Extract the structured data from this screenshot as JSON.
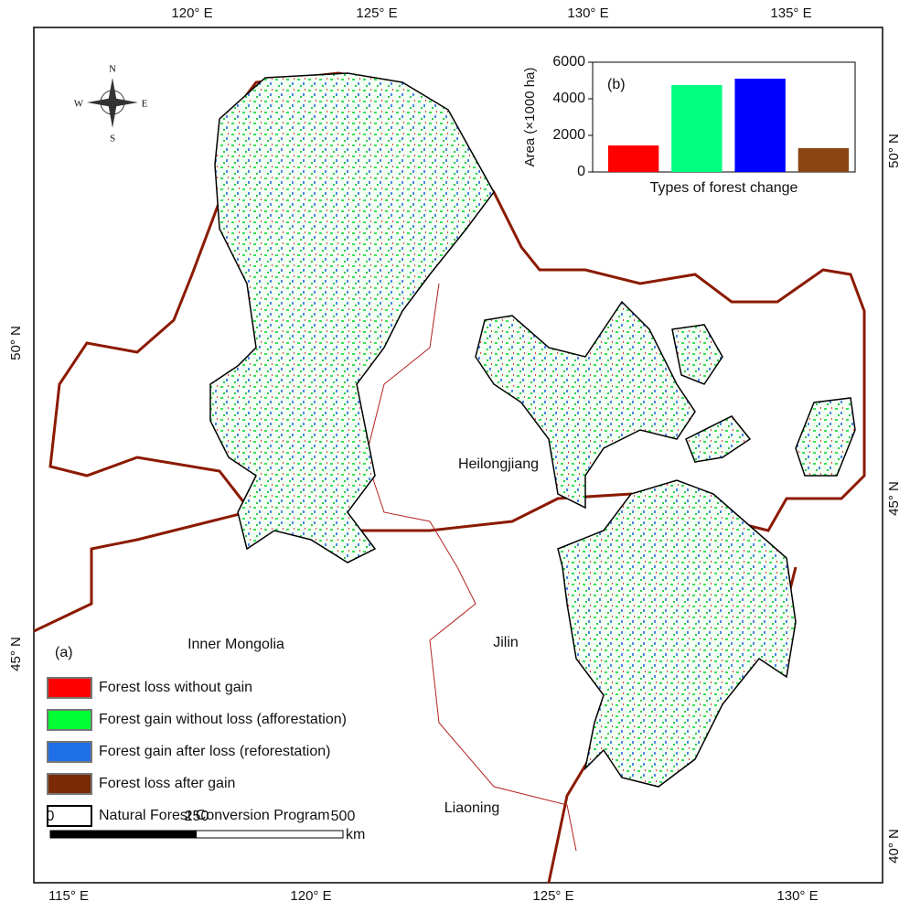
{
  "map": {
    "panel_label": "(a)",
    "regions": [
      "Heilongjiang",
      "Inner Mongolia",
      "Jilin",
      "Liaoning"
    ],
    "top_labels": [
      "120° E",
      "125° E",
      "130° E",
      "135° E"
    ],
    "bottom_labels": [
      "115° E",
      "120° E",
      "125° E",
      "130° E"
    ],
    "left_labels": [
      "50° N",
      "45° N"
    ],
    "right_labels": [
      "50° N",
      "45° N",
      "40° N"
    ],
    "compass": {
      "n": "N",
      "s": "S",
      "e": "E",
      "w": "W"
    },
    "legend": [
      {
        "label": "Forest loss without gain",
        "color": "#ff0000"
      },
      {
        "label": "Forest gain without loss (afforestation)",
        "color": "#00ff33"
      },
      {
        "label": "Forest gain after loss (reforestation)",
        "color": "#1f6fe6"
      },
      {
        "label": "Forest loss after gain",
        "color": "#7a2a05"
      },
      {
        "label": "Natural Forest Conversion Program",
        "color": "#ffffff"
      }
    ],
    "scale": {
      "ticks": [
        0,
        250,
        500
      ],
      "unit": "km"
    }
  },
  "chart_data": {
    "type": "bar",
    "title": "(b)",
    "xlabel": "Types of forest change",
    "ylabel": "Area (×1000 ha)",
    "categories": [
      null,
      null,
      null,
      null
    ],
    "values": [
      1450,
      4750,
      5100,
      1300
    ],
    "colors": [
      "#ff0000",
      "#00ff80",
      "#0000ff",
      "#8b4513"
    ],
    "ylim": [
      0,
      6000
    ],
    "yticks": [
      0,
      2000,
      4000,
      6000
    ]
  }
}
